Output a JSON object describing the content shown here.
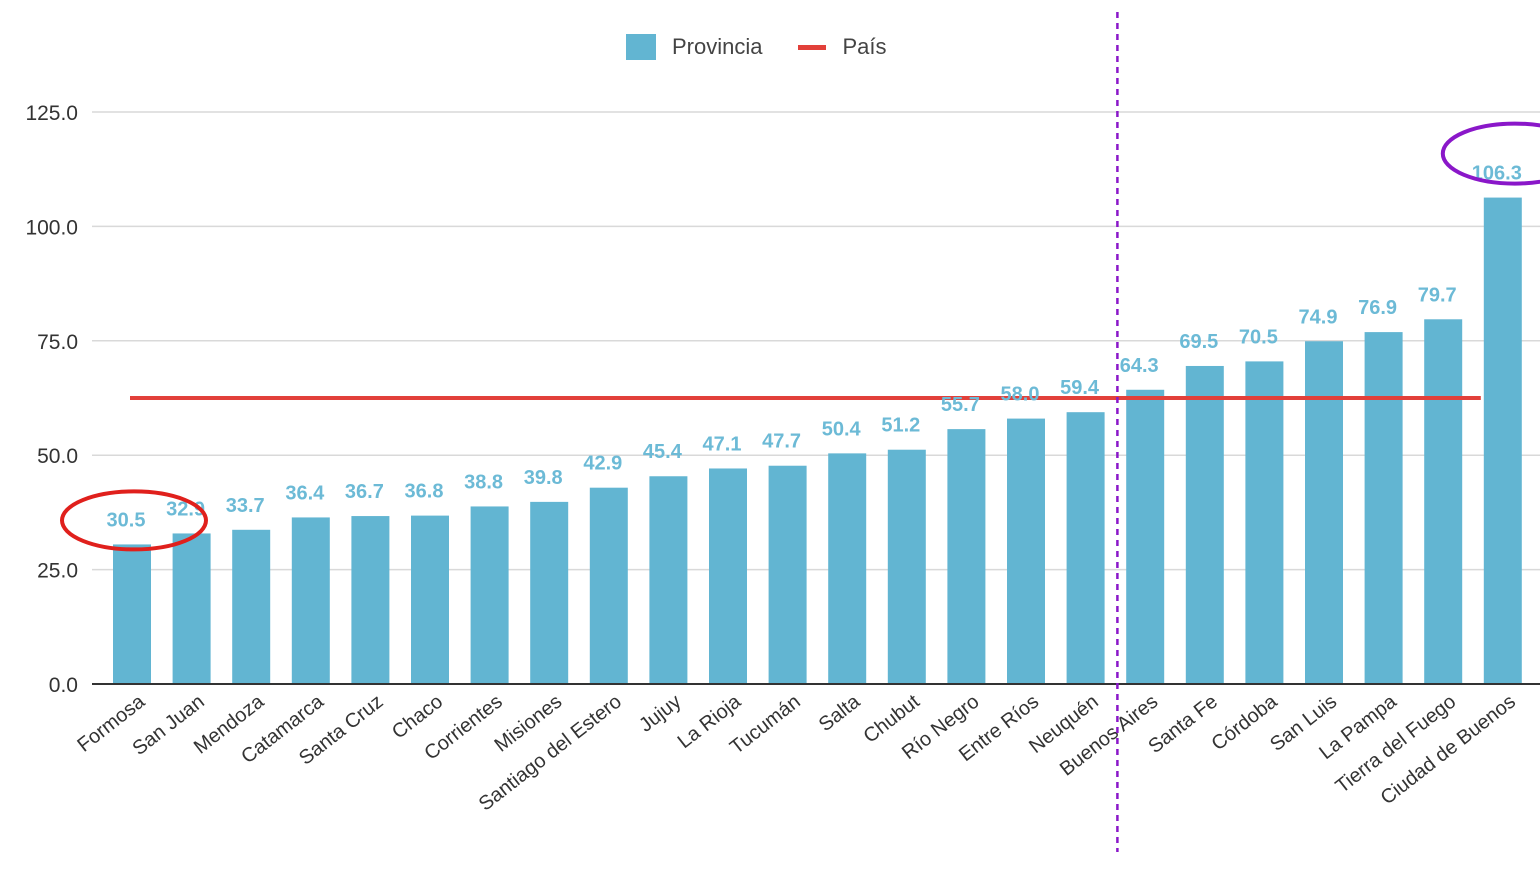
{
  "colors": {
    "bar": "#62b5d2",
    "label": "#6cbad6",
    "country_line": "#e2403a",
    "grid": "#d9d9d9",
    "axis": "#333333",
    "tick": "#333333",
    "highlight_low": "#e0201c",
    "highlight_high": "#8a17c9",
    "divider": "#8a17c9"
  },
  "legend": {
    "provincia": "Provincia",
    "pais": "País"
  },
  "chart_data": {
    "type": "bar",
    "categories": [
      "Formosa",
      "San Juan",
      "Mendoza",
      "Catamarca",
      "Santa Cruz",
      "Chaco",
      "Corrientes",
      "Misiones",
      "Santiago del Estero",
      "Jujuy",
      "La Rioja",
      "Tucumán",
      "Salta",
      "Chubut",
      "Río Negro",
      "Entre Ríos",
      "Neuquén",
      "Buenos Aires",
      "Santa Fe",
      "Córdoba",
      "San Luis",
      "La Pampa",
      "Tierra del Fuego",
      "Ciudad de Buenos"
    ],
    "series": [
      {
        "name": "Provincia",
        "values": [
          30.5,
          32.9,
          33.7,
          36.4,
          36.7,
          36.8,
          38.8,
          39.8,
          42.9,
          45.4,
          47.1,
          47.7,
          50.4,
          51.2,
          55.7,
          58.0,
          59.4,
          64.3,
          69.5,
          70.5,
          74.9,
          76.9,
          79.7,
          106.3
        ]
      },
      {
        "name": "País",
        "value": 62.5
      }
    ],
    "data_labels": [
      "30.5",
      "32.9",
      "33.7",
      "36.4",
      "36.7",
      "36.8",
      "38.8",
      "39.8",
      "42.9",
      "45.4",
      "47.1",
      "47.7",
      "50.4",
      "51.2",
      "55.7",
      "58.0",
      "59.4",
      "64.3",
      "69.5",
      "70.5",
      "74.9",
      "76.9",
      "79.7",
      "106.3"
    ],
    "yticks": [
      "0.0",
      "25.0",
      "50.0",
      "75.0",
      "100.0",
      "125.0"
    ],
    "ylim": [
      0,
      125
    ],
    "grid": true,
    "legend_position": "top-center",
    "highlighted": [
      "Formosa",
      "Ciudad de Buenos"
    ],
    "divider_between": [
      "Neuquén",
      "Buenos Aires"
    ]
  }
}
